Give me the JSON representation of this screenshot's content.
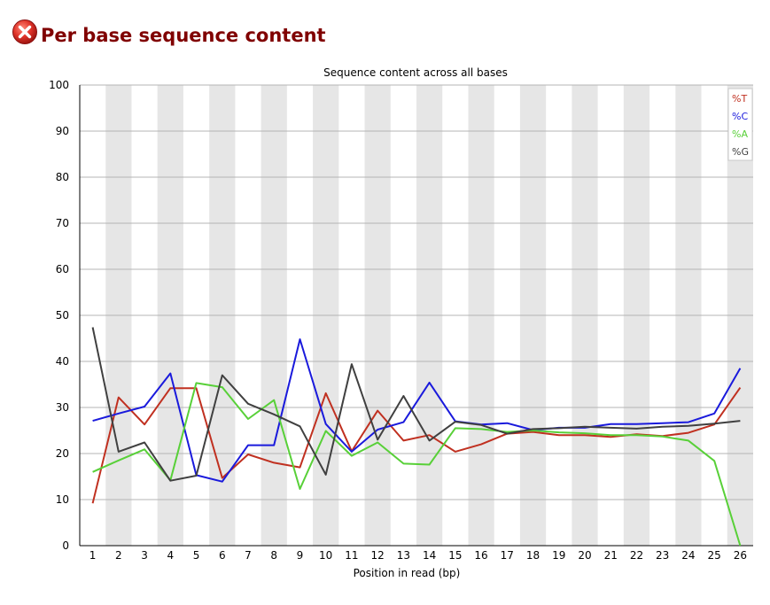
{
  "header": {
    "title": "Per base sequence content",
    "status_icon": "error-cross-icon",
    "status_color": "#d42a2a"
  },
  "chart_data": {
    "type": "line",
    "title": "Sequence content across all bases",
    "xlabel": "Position in read (bp)",
    "ylabel": "",
    "ylim": [
      0,
      100
    ],
    "yticks": [
      0,
      10,
      20,
      30,
      40,
      50,
      60,
      70,
      80,
      90,
      100
    ],
    "categories": [
      "1",
      "2",
      "3",
      "4",
      "5",
      "6",
      "7",
      "8",
      "9",
      "10",
      "11",
      "12",
      "13",
      "14",
      "15",
      "16",
      "17",
      "18",
      "19",
      "20",
      "21",
      "22",
      "23",
      "24",
      "25",
      "26"
    ],
    "grid": true,
    "legend_position": "top-right",
    "series": [
      {
        "name": "%T",
        "color": "#c03020",
        "values": [
          9.2,
          32.2,
          26.3,
          34.2,
          34.2,
          14.7,
          19.8,
          18.0,
          17.0,
          33.1,
          20.5,
          29.3,
          22.8,
          24.0,
          20.4,
          22.0,
          24.3,
          24.7,
          24.0,
          24.0,
          23.6,
          24.2,
          23.8,
          24.5,
          26.3,
          34.3
        ]
      },
      {
        "name": "%C",
        "color": "#1a1adc",
        "values": [
          27.1,
          28.7,
          30.2,
          37.4,
          15.3,
          13.9,
          21.8,
          21.8,
          44.8,
          26.4,
          20.4,
          25.2,
          26.8,
          35.4,
          27.0,
          26.3,
          26.6,
          25.1,
          25.6,
          25.6,
          26.4,
          26.4,
          26.6,
          26.8,
          28.7,
          38.5
        ]
      },
      {
        "name": "%A",
        "color": "#58d038",
        "values": [
          16.0,
          18.5,
          20.9,
          14.2,
          35.3,
          34.4,
          27.5,
          31.6,
          12.3,
          24.9,
          19.5,
          22.4,
          17.8,
          17.6,
          25.5,
          25.3,
          24.7,
          25.0,
          24.6,
          24.4,
          24.0,
          24.0,
          23.7,
          22.8,
          18.4,
          0.0
        ]
      },
      {
        "name": "%G",
        "color": "#404040",
        "values": [
          47.4,
          20.4,
          22.4,
          14.1,
          15.2,
          37.0,
          30.8,
          28.5,
          25.9,
          15.4,
          39.4,
          23.0,
          32.5,
          22.8,
          26.9,
          26.2,
          24.3,
          25.3,
          25.5,
          25.8,
          25.6,
          25.4,
          25.8,
          26.0,
          26.5,
          27.1
        ]
      }
    ]
  }
}
